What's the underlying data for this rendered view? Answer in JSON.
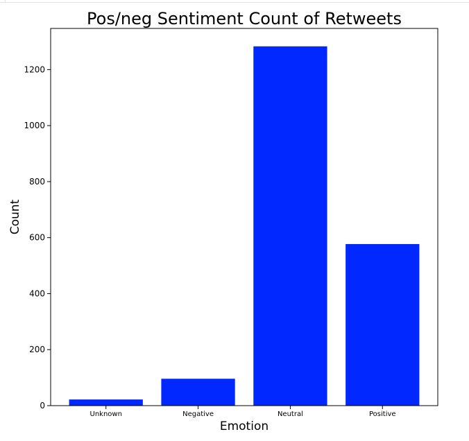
{
  "chart_data": {
    "type": "bar",
    "title": "Pos/neg Sentiment Count of Retweets",
    "xlabel": "Emotion",
    "ylabel": "Count",
    "categories": [
      "Unknown",
      "Negative",
      "Neutral",
      "Positive"
    ],
    "values": [
      22,
      96,
      1283,
      577
    ],
    "ylim": [
      0,
      1347
    ],
    "yticks": [
      0,
      200,
      400,
      600,
      800,
      1000,
      1200
    ],
    "bar_color": "#0028ff",
    "grid": false,
    "legend": "none"
  }
}
